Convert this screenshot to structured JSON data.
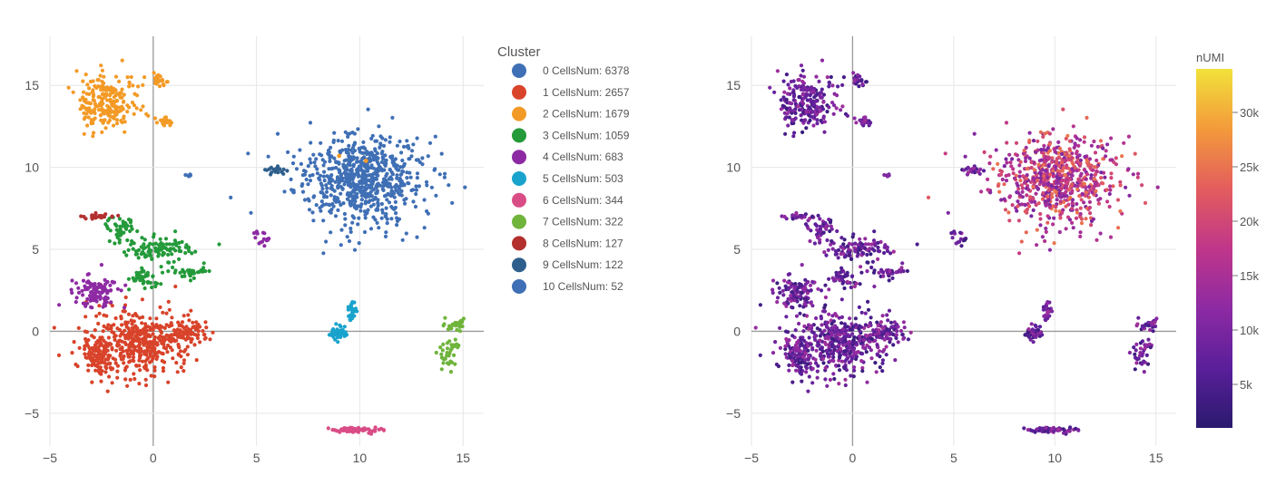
{
  "chart_data": [
    {
      "type": "scatter",
      "panel": "clusters",
      "xlim": [
        -5,
        16
      ],
      "ylim": [
        -7,
        18
      ],
      "xticks": [
        -5,
        0,
        5,
        10,
        15
      ],
      "yticks": [
        -5,
        0,
        5,
        10,
        15
      ],
      "xtick_labels": [
        "−5",
        "0",
        "5",
        "10",
        "15"
      ],
      "ytick_labels": [
        "−5",
        "0",
        "5",
        "10",
        "15"
      ],
      "grid": true,
      "zero_lines": true,
      "legend": {
        "title": "Cluster",
        "placement": "right",
        "entries": [
          {
            "label": "0 CellsNum: 6378",
            "color": "#3f6fb5"
          },
          {
            "label": "1 CellsNum: 2657",
            "color": "#d8432a"
          },
          {
            "label": "2 CellsNum: 1679",
            "color": "#f39a26"
          },
          {
            "label": "3 CellsNum: 1059",
            "color": "#249a3a"
          },
          {
            "label": "4 CellsNum: 683",
            "color": "#8d2aa3"
          },
          {
            "label": "5 CellsNum: 503",
            "color": "#19a3cc"
          },
          {
            "label": "6 CellsNum: 344",
            "color": "#d94d86"
          },
          {
            "label": "7 CellsNum: 322",
            "color": "#6fb43b"
          },
          {
            "label": "8 CellsNum: 127",
            "color": "#b3302f"
          },
          {
            "label": "9 CellsNum: 122",
            "color": "#2e5f8c"
          },
          {
            "label": "10 CellsNum: 52",
            "color": "#3f6fb5"
          }
        ]
      },
      "series": [
        {
          "cluster": 0,
          "color": "#3f6fb5",
          "blobs": [
            [
              10.0,
              9.3,
              3.7,
              3.2,
              700
            ]
          ]
        },
        {
          "cluster": 1,
          "color": "#d8432a",
          "blobs": [
            [
              -0.6,
              -0.7,
              3.0,
              2.4,
              420
            ],
            [
              -2.7,
              -1.6,
              0.8,
              1.3,
              90
            ],
            [
              1.7,
              -0.1,
              0.9,
              0.9,
              60
            ]
          ]
        },
        {
          "cluster": 2,
          "color": "#f39a26",
          "blobs": [
            [
              -2.2,
              13.9,
              1.7,
              2.2,
              230
            ],
            [
              0.3,
              15.3,
              0.6,
              0.6,
              25
            ],
            [
              0.5,
              12.8,
              0.5,
              0.4,
              20
            ]
          ]
        },
        {
          "cluster": 3,
          "color": "#249a3a",
          "blobs": [
            [
              -1.6,
              6.3,
              0.8,
              0.8,
              45
            ],
            [
              0.3,
              5.0,
              1.8,
              0.9,
              100
            ],
            [
              -0.5,
              3.2,
              0.9,
              0.9,
              45
            ],
            [
              1.9,
              3.6,
              1.1,
              0.4,
              35
            ]
          ]
        },
        {
          "cluster": 4,
          "color": "#8d2aa3",
          "blobs": [
            [
              -2.7,
              2.4,
              1.3,
              1.1,
              110
            ],
            [
              5.3,
              5.6,
              0.5,
              0.5,
              15
            ]
          ]
        },
        {
          "cluster": 5,
          "color": "#19a3cc",
          "blobs": [
            [
              8.9,
              -0.1,
              0.6,
              0.6,
              45
            ],
            [
              9.6,
              1.2,
              0.3,
              0.8,
              25
            ]
          ]
        },
        {
          "cluster": 6,
          "color": "#d94d86",
          "blobs": [
            [
              9.9,
              -6.0,
              1.4,
              0.2,
              70
            ]
          ]
        },
        {
          "cluster": 7,
          "color": "#6fb43b",
          "blobs": [
            [
              14.2,
              -1.6,
              0.4,
              0.8,
              25
            ],
            [
              14.6,
              0.4,
              0.6,
              0.6,
              25
            ],
            [
              14.4,
              -0.8,
              0.8,
              0.4,
              15
            ]
          ]
        },
        {
          "cluster": 8,
          "color": "#b3302f",
          "blobs": [
            [
              -2.6,
              7.0,
              0.9,
              0.2,
              30
            ]
          ]
        },
        {
          "cluster": 9,
          "color": "#2e5f8c",
          "blobs": [
            [
              6.0,
              9.8,
              0.6,
              0.4,
              18
            ]
          ]
        },
        {
          "cluster": 10,
          "color": "#3f6fb5",
          "blobs": [
            [
              1.7,
              9.5,
              0.2,
              0.1,
              6
            ]
          ]
        }
      ],
      "highlight_points": [
        [
          9.0,
          10.7,
          "#f39a26"
        ],
        [
          10.3,
          10.4,
          "#f39a26"
        ]
      ]
    },
    {
      "type": "scatter",
      "panel": "nUMI",
      "xlim": [
        -5,
        16
      ],
      "ylim": [
        -7,
        18
      ],
      "xticks": [
        -5,
        0,
        5,
        10,
        15
      ],
      "yticks": [
        -5,
        0,
        5,
        10,
        15
      ],
      "xtick_labels": [
        "−5",
        "0",
        "5",
        "10",
        "15"
      ],
      "ytick_labels": [
        "−5",
        "0",
        "5",
        "10",
        "15"
      ],
      "grid": true,
      "zero_lines": true,
      "colorbar": {
        "title": "nUMI",
        "placement": "right",
        "range": [
          1000,
          34000
        ],
        "ticks": [
          5000,
          10000,
          15000,
          20000,
          25000,
          30000
        ],
        "tick_labels": [
          "5k",
          "10k",
          "15k",
          "20k",
          "25k",
          "30k"
        ],
        "colors": [
          "#2a1a6e",
          "#5a1f9a",
          "#8d2aa3",
          "#c0368a",
          "#e35d5d",
          "#f39a3b",
          "#f2e23a"
        ]
      }
    }
  ]
}
